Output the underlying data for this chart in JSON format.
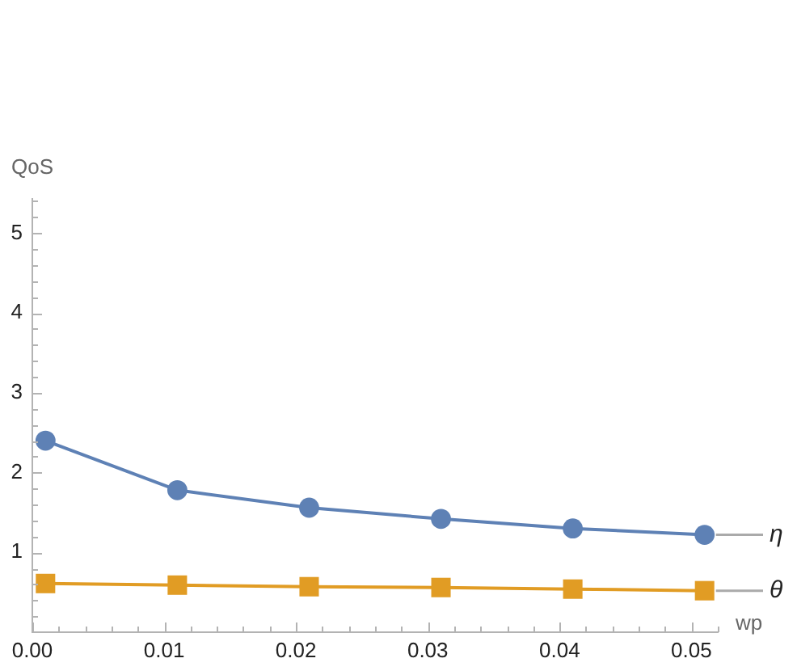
{
  "chart_data": {
    "type": "line",
    "xlabel": "wp",
    "ylabel": "QoS",
    "x": [
      0.001,
      0.011,
      0.021,
      0.031,
      0.041,
      0.051
    ],
    "series": [
      {
        "name": "η",
        "color": "#5e81b5",
        "marker": "circle",
        "values": [
          2.4,
          1.78,
          1.56,
          1.42,
          1.3,
          1.22
        ]
      },
      {
        "name": "θ",
        "color": "#e19c24",
        "marker": "square",
        "values": [
          0.61,
          0.59,
          0.57,
          0.56,
          0.54,
          0.52
        ]
      }
    ],
    "xlim": [
      0,
      0.052
    ],
    "ylim": [
      0,
      5.43
    ],
    "xticks": [
      {
        "value": 0,
        "label": "0.00"
      },
      {
        "value": 0.002,
        "label": null
      },
      {
        "value": 0.004,
        "label": null
      },
      {
        "value": 0.006,
        "label": null
      },
      {
        "value": 0.008,
        "label": null
      },
      0.01,
      {
        "value": 0.012,
        "label": null
      },
      {
        "value": 0.014,
        "label": null
      },
      {
        "value": 0.016,
        "label": null
      },
      {
        "value": 0.018,
        "label": null
      },
      0.02,
      {
        "value": 0.022,
        "label": null
      },
      {
        "value": 0.024,
        "label": null
      },
      {
        "value": 0.026,
        "label": null
      },
      {
        "value": 0.028,
        "label": null
      },
      0.03,
      {
        "value": 0.032,
        "label": null
      },
      {
        "value": 0.034,
        "label": null
      },
      {
        "value": 0.036,
        "label": null
      },
      {
        "value": 0.038,
        "label": null
      },
      0.04,
      {
        "value": 0.042,
        "label": null
      },
      {
        "value": 0.044,
        "label": null
      },
      {
        "value": 0.046,
        "label": null
      },
      {
        "value": 0.048,
        "label": null
      },
      0.05,
      {
        "value": 0.052,
        "label": null
      }
    ],
    "yticks": [
      {
        "value": 0.2,
        "label": null
      },
      {
        "value": 0.4,
        "label": null
      },
      {
        "value": 0.6,
        "label": null
      },
      {
        "value": 0.8,
        "label": null
      },
      1,
      {
        "value": 1.2,
        "label": null
      },
      {
        "value": 1.4,
        "label": null
      },
      {
        "value": 1.6,
        "label": null
      },
      {
        "value": 1.8,
        "label": null
      },
      2,
      {
        "value": 2.2,
        "label": null
      },
      {
        "value": 2.4,
        "label": null
      },
      {
        "value": 2.6,
        "label": null
      },
      {
        "value": 2.8,
        "label": null
      },
      3,
      {
        "value": 3.2,
        "label": null
      },
      {
        "value": 3.4,
        "label": null
      },
      {
        "value": 3.6,
        "label": null
      },
      {
        "value": 3.8,
        "label": null
      },
      4,
      {
        "value": 4.2,
        "label": null
      },
      {
        "value": 4.4,
        "label": null
      },
      {
        "value": 4.6,
        "label": null
      },
      {
        "value": 4.8,
        "label": null
      },
      5,
      {
        "value": 5.2,
        "label": null
      },
      {
        "value": 5.4,
        "label": null
      }
    ],
    "line_style": "solid"
  }
}
